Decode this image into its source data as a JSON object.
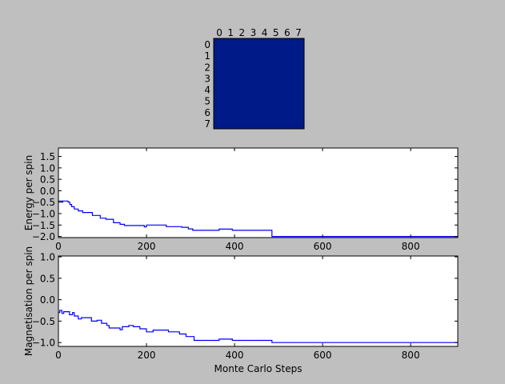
{
  "chart_data": [
    {
      "type": "heatmap",
      "title": "",
      "x_ticks": [
        "0",
        "1",
        "2",
        "3",
        "4",
        "5",
        "6",
        "7"
      ],
      "y_ticks": [
        "0",
        "1",
        "2",
        "3",
        "4",
        "5",
        "6",
        "7"
      ],
      "fill_color": "#001a88",
      "values": "all cells uniform (single spin state)"
    },
    {
      "type": "line",
      "ylabel": "Energy per spin",
      "xlabel": "",
      "xlim": [
        0,
        907
      ],
      "ylim": [
        -2.05,
        1.87
      ],
      "x_ticks": [
        0,
        200,
        400,
        600,
        800
      ],
      "y_ticks": [
        -2.0,
        -1.5,
        -1.0,
        -0.5,
        0.0,
        0.5,
        1.0,
        1.5
      ],
      "y_tick_labels": [
        "−2.0",
        "−1.5",
        "−1.0",
        "−0.5",
        "0.0",
        "0.5",
        "1.0",
        "1.5"
      ],
      "color": "#0000ff",
      "points": [
        [
          0,
          -0.45
        ],
        [
          8,
          -0.45
        ],
        [
          8,
          -0.5
        ],
        [
          10,
          -0.5
        ],
        [
          10,
          -0.45
        ],
        [
          22,
          -0.45
        ],
        [
          22,
          -0.5
        ],
        [
          26,
          -0.5
        ],
        [
          26,
          -0.6
        ],
        [
          30,
          -0.6
        ],
        [
          30,
          -0.7
        ],
        [
          36,
          -0.7
        ],
        [
          36,
          -0.8
        ],
        [
          45,
          -0.8
        ],
        [
          45,
          -0.88
        ],
        [
          55,
          -0.88
        ],
        [
          55,
          -0.95
        ],
        [
          77,
          -0.95
        ],
        [
          77,
          -1.08
        ],
        [
          95,
          -1.08
        ],
        [
          95,
          -1.2
        ],
        [
          108,
          -1.2
        ],
        [
          108,
          -1.25
        ],
        [
          125,
          -1.25
        ],
        [
          125,
          -1.4
        ],
        [
          140,
          -1.4
        ],
        [
          140,
          -1.47
        ],
        [
          150,
          -1.47
        ],
        [
          150,
          -1.52
        ],
        [
          195,
          -1.52
        ],
        [
          195,
          -1.58
        ],
        [
          200,
          -1.58
        ],
        [
          200,
          -1.5
        ],
        [
          245,
          -1.5
        ],
        [
          245,
          -1.57
        ],
        [
          280,
          -1.57
        ],
        [
          280,
          -1.6
        ],
        [
          295,
          -1.6
        ],
        [
          295,
          -1.67
        ],
        [
          305,
          -1.67
        ],
        [
          305,
          -1.73
        ],
        [
          365,
          -1.73
        ],
        [
          365,
          -1.68
        ],
        [
          395,
          -1.68
        ],
        [
          395,
          -1.73
        ],
        [
          485,
          -1.73
        ],
        [
          485,
          -2.0
        ],
        [
          907,
          -2.0
        ]
      ]
    },
    {
      "type": "line",
      "ylabel": "Magnetisation per spin",
      "xlabel": "Monte Carlo Steps",
      "xlim": [
        0,
        907
      ],
      "ylim": [
        -1.09,
        1.02
      ],
      "x_ticks": [
        0,
        200,
        400,
        600,
        800
      ],
      "x_tick_labels": [
        "0",
        "200",
        "400",
        "600",
        "800"
      ],
      "y_ticks": [
        -1.0,
        -0.5,
        0.0,
        0.5,
        1.0
      ],
      "y_tick_labels": [
        "−1.0",
        "−0.5",
        "0.0",
        "0.5",
        "1.0"
      ],
      "color": "#0000ff",
      "points": [
        [
          0,
          -0.3
        ],
        [
          3,
          -0.3
        ],
        [
          3,
          -0.25
        ],
        [
          8,
          -0.25
        ],
        [
          8,
          -0.32
        ],
        [
          12,
          -0.32
        ],
        [
          12,
          -0.28
        ],
        [
          25,
          -0.28
        ],
        [
          25,
          -0.35
        ],
        [
          32,
          -0.35
        ],
        [
          32,
          -0.3
        ],
        [
          36,
          -0.3
        ],
        [
          36,
          -0.38
        ],
        [
          45,
          -0.38
        ],
        [
          45,
          -0.45
        ],
        [
          52,
          -0.45
        ],
        [
          52,
          -0.42
        ],
        [
          75,
          -0.42
        ],
        [
          75,
          -0.5
        ],
        [
          88,
          -0.5
        ],
        [
          88,
          -0.48
        ],
        [
          98,
          -0.48
        ],
        [
          98,
          -0.55
        ],
        [
          110,
          -0.55
        ],
        [
          110,
          -0.6
        ],
        [
          115,
          -0.6
        ],
        [
          115,
          -0.66
        ],
        [
          140,
          -0.66
        ],
        [
          140,
          -0.7
        ],
        [
          145,
          -0.7
        ],
        [
          145,
          -0.63
        ],
        [
          160,
          -0.63
        ],
        [
          160,
          -0.6
        ],
        [
          170,
          -0.6
        ],
        [
          170,
          -0.63
        ],
        [
          185,
          -0.63
        ],
        [
          185,
          -0.68
        ],
        [
          200,
          -0.68
        ],
        [
          200,
          -0.75
        ],
        [
          215,
          -0.75
        ],
        [
          215,
          -0.71
        ],
        [
          250,
          -0.71
        ],
        [
          250,
          -0.75
        ],
        [
          275,
          -0.75
        ],
        [
          275,
          -0.8
        ],
        [
          290,
          -0.8
        ],
        [
          290,
          -0.86
        ],
        [
          308,
          -0.86
        ],
        [
          308,
          -0.95
        ],
        [
          365,
          -0.95
        ],
        [
          365,
          -0.92
        ],
        [
          395,
          -0.92
        ],
        [
          395,
          -0.95
        ],
        [
          485,
          -0.95
        ],
        [
          485,
          -1.0
        ],
        [
          907,
          -1.0
        ]
      ]
    }
  ]
}
